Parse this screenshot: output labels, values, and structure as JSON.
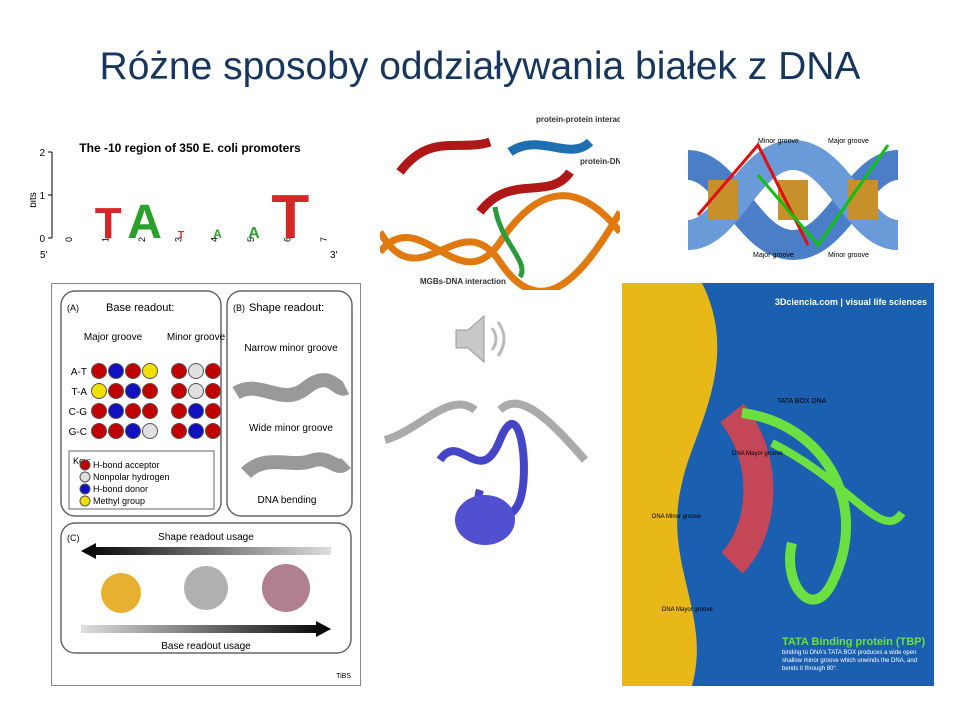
{
  "title": "Różne sposoby oddziaływania białek z DNA",
  "logo": {
    "title": "The -10 region of 350 E. coli promoters",
    "ylabel": "bits",
    "yticks": [
      0,
      1,
      2
    ],
    "xticks": [
      0,
      1,
      2,
      3,
      4,
      5,
      6,
      7
    ],
    "end5": "5′",
    "end3": "3′",
    "letters": [
      "T",
      "A",
      "T",
      "A",
      "A",
      "T"
    ],
    "letter_colors": [
      "#d62728",
      "#2ca02c",
      "#d62728",
      "#2ca02c",
      "#2ca02c",
      "#d62728"
    ]
  },
  "interaction": {
    "labels": [
      "protein-protein interaction",
      "protein-DNA interaction",
      "MGBs-DNA interaction"
    ]
  },
  "grooves": {
    "labels": [
      "Minor groove",
      "Major groove",
      "Major groove",
      "Minor groove"
    ]
  },
  "readout": {
    "panel_a": "(A)",
    "base_readout": "Base readout:",
    "major": "Major groove",
    "minor": "Minor groove",
    "rows": [
      {
        "label": "A-T",
        "major": [
          "#c00000",
          "#1010c0",
          "#c00000",
          "#f0e000"
        ],
        "minor": [
          "#c00000",
          "#e0e0e0",
          "#c00000"
        ]
      },
      {
        "label": "T-A",
        "major": [
          "#f0e000",
          "#c00000",
          "#1010c0",
          "#c00000"
        ],
        "minor": [
          "#c00000",
          "#e0e0e0",
          "#c00000"
        ]
      },
      {
        "label": "C-G",
        "major": [
          "#c00000",
          "#1010c0",
          "#c00000",
          "#c00000"
        ],
        "minor": [
          "#c00000",
          "#1010c0",
          "#c00000"
        ]
      },
      {
        "label": "G-C",
        "major": [
          "#c00000",
          "#c00000",
          "#1010c0",
          "#e0e0e0"
        ],
        "minor": [
          "#c00000",
          "#1010c0",
          "#c00000"
        ]
      }
    ],
    "key_title": "Key:",
    "key": [
      {
        "label": "H-bond acceptor",
        "color": "#c00000"
      },
      {
        "label": "Nonpolar hydrogen",
        "color": "#e0e0e0"
      },
      {
        "label": "H-bond donor",
        "color": "#1010c0"
      },
      {
        "label": "Methyl group",
        "color": "#f0e000"
      }
    ],
    "panel_b": "(B)",
    "shape_readout": "Shape readout:",
    "narrow": "Narrow minor groove",
    "wide": "Wide minor groove",
    "bending": "DNA bending",
    "panel_c": "(C)",
    "shape_usage": "Shape readout usage",
    "base_usage": "Base readout usage",
    "source": "TiBS"
  },
  "tbp": {
    "brand": "3Dciencia.com | visual life sciences",
    "labels": [
      "TATA BOX DNA",
      "DNA Mayor groove",
      "DNA Minor groove",
      "DNA Mayor groove"
    ],
    "heading": "TATA Binding protein (TBP)",
    "caption": "binding to DNA's TATA BOX produces a wide open shallow minor groove which unwinds the DNA, and bends it through 80°."
  }
}
